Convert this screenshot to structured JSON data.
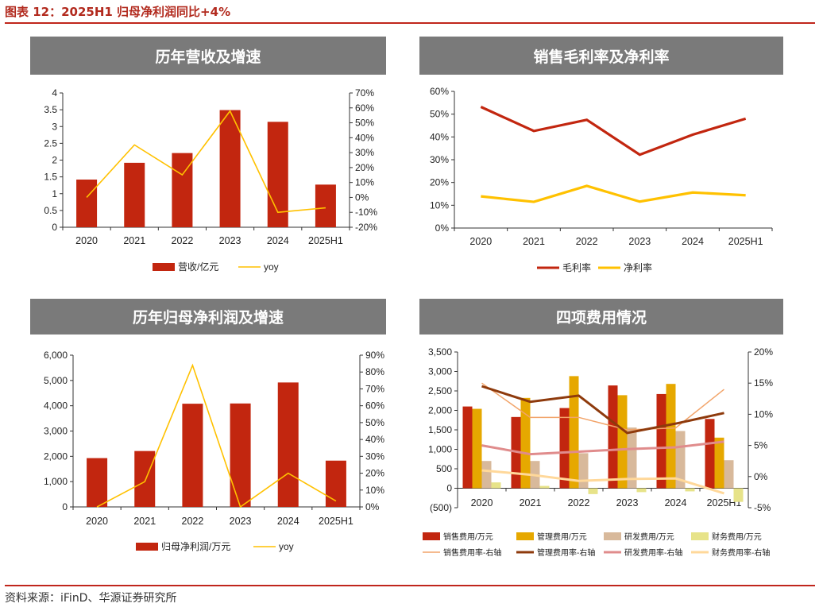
{
  "figure": {
    "title": "图表 12：2025H1 归母净利润同比+4%",
    "source": "资料来源：iFinD、华源证券研究所"
  },
  "colors": {
    "red": "#c2260f",
    "yellow": "#ffc100",
    "gold": "#e6a800",
    "tan": "#d8b99b",
    "khaki": "#e7e389",
    "orange_line": "#f2a46a",
    "brown_line": "#8e3a0c",
    "pink_line": "#e08c8c",
    "lightyellow_line": "#ffd89a"
  },
  "chart_data": [
    {
      "id": "revenue",
      "type": "bar",
      "title": "历年营收及增速",
      "categories": [
        "2020",
        "2021",
        "2022",
        "2023",
        "2024",
        "2025H1"
      ],
      "series": [
        {
          "name": "营收/亿元",
          "type": "bar",
          "axis": "left",
          "values": [
            1.42,
            1.92,
            2.21,
            3.49,
            3.14,
            1.27
          ]
        },
        {
          "name": "yoy",
          "type": "line",
          "axis": "right",
          "values": [
            0.0,
            35.2,
            15.1,
            57.9,
            -10.0,
            -7.0
          ]
        }
      ],
      "y_left": {
        "min": 0,
        "max": 4,
        "step": 0.5,
        "ticks": [
          "0",
          "0.5",
          "1",
          "1.5",
          "2",
          "2.5",
          "3",
          "3.5",
          "4"
        ]
      },
      "y_right": {
        "min": -20,
        "max": 70,
        "step": 10,
        "ticks": [
          "-20%",
          "-10%",
          "0%",
          "10%",
          "20%",
          "30%",
          "40%",
          "50%",
          "60%",
          "70%"
        ]
      },
      "legend": {
        "position": "bottom",
        "items": [
          "营收/亿元",
          "yoy"
        ]
      }
    },
    {
      "id": "margin",
      "type": "line",
      "title": "销售毛利率及净利率",
      "categories": [
        "2020",
        "2021",
        "2022",
        "2023",
        "2024",
        "2025H1"
      ],
      "series": [
        {
          "name": "毛利率",
          "type": "line",
          "values": [
            53.2,
            42.6,
            47.5,
            32.2,
            41.0,
            48.0
          ]
        },
        {
          "name": "净利率",
          "type": "line",
          "values": [
            13.9,
            11.5,
            18.5,
            11.6,
            15.6,
            14.4
          ]
        }
      ],
      "y_left": {
        "min": 0,
        "max": 60,
        "step": 10,
        "ticks": [
          "0%",
          "10%",
          "20%",
          "30%",
          "40%",
          "50%",
          "60%"
        ]
      },
      "legend": {
        "position": "bottom",
        "items": [
          "毛利率",
          "净利率"
        ]
      }
    },
    {
      "id": "profit",
      "type": "bar",
      "title": "历年归母净利润及增速",
      "categories": [
        "2020",
        "2021",
        "2022",
        "2023",
        "2024",
        "2025H1"
      ],
      "series": [
        {
          "name": "归母净利润/万元",
          "type": "bar",
          "axis": "left",
          "values": [
            1930,
            2210,
            4080,
            4090,
            4920,
            1830
          ]
        },
        {
          "name": "yoy",
          "type": "line",
          "axis": "right",
          "values": [
            0.0,
            15.0,
            84.0,
            0.0,
            20.0,
            3.5
          ]
        }
      ],
      "y_left": {
        "min": 0,
        "max": 6000,
        "step": 1000,
        "ticks": [
          "0",
          "1,000",
          "2,000",
          "3,000",
          "4,000",
          "5,000",
          "6,000"
        ]
      },
      "y_right": {
        "min": 0,
        "max": 90,
        "step": 10,
        "ticks": [
          "0%",
          "10%",
          "20%",
          "30%",
          "40%",
          "50%",
          "60%",
          "70%",
          "80%",
          "90%"
        ]
      },
      "legend": {
        "position": "bottom",
        "items": [
          "归母净利润/万元",
          "yoy"
        ]
      }
    },
    {
      "id": "expenses",
      "type": "bar",
      "title": "四项费用情况",
      "categories": [
        "2020",
        "2021",
        "2022",
        "2023",
        "2024",
        "2025H1"
      ],
      "series": [
        {
          "name": "销售费用/万元",
          "type": "bar",
          "axis": "left",
          "values": [
            2100,
            1830,
            2060,
            2640,
            2420,
            1780
          ]
        },
        {
          "name": "管理费用/万元",
          "type": "bar",
          "axis": "left",
          "values": [
            2040,
            2320,
            2880,
            2390,
            2680,
            1300
          ]
        },
        {
          "name": "研发费用/万元",
          "type": "bar",
          "axis": "left",
          "values": [
            700,
            700,
            900,
            1560,
            1470,
            720
          ]
        },
        {
          "name": "财务费用/万元",
          "type": "bar",
          "axis": "left",
          "values": [
            150,
            60,
            -150,
            -100,
            -80,
            -350
          ]
        },
        {
          "name": "销售费用率-右轴",
          "type": "line",
          "axis": "right",
          "values": [
            15.0,
            9.5,
            9.5,
            7.5,
            7.8,
            14.0
          ]
        },
        {
          "name": "管理费用率-右轴",
          "type": "line",
          "axis": "right",
          "values": [
            14.5,
            12.0,
            13.0,
            7.0,
            8.5,
            10.2
          ]
        },
        {
          "name": "研发费用率-右轴",
          "type": "line",
          "axis": "right",
          "values": [
            5.0,
            3.6,
            4.0,
            4.4,
            4.7,
            5.6
          ]
        },
        {
          "name": "财务费用率-右轴",
          "type": "line",
          "axis": "right",
          "values": [
            1.0,
            0.3,
            -0.7,
            -0.4,
            -0.3,
            -2.7
          ]
        }
      ],
      "y_left": {
        "min": -500,
        "max": 3500,
        "step": 500,
        "ticks": [
          "(500)",
          "0",
          "500",
          "1,000",
          "1,500",
          "2,000",
          "2,500",
          "3,000",
          "3,500"
        ]
      },
      "y_right": {
        "min": -5,
        "max": 20,
        "step": 5,
        "ticks": [
          "-5%",
          "0%",
          "5%",
          "10%",
          "15%",
          "20%"
        ]
      },
      "legend": {
        "position": "bottom",
        "items": [
          "销售费用/万元",
          "管理费用/万元",
          "研发费用/万元",
          "财务费用/万元",
          "销售费用率-右轴",
          "管理费用率-右轴",
          "研发费用率-右轴",
          "财务费用率-右轴"
        ]
      }
    }
  ]
}
